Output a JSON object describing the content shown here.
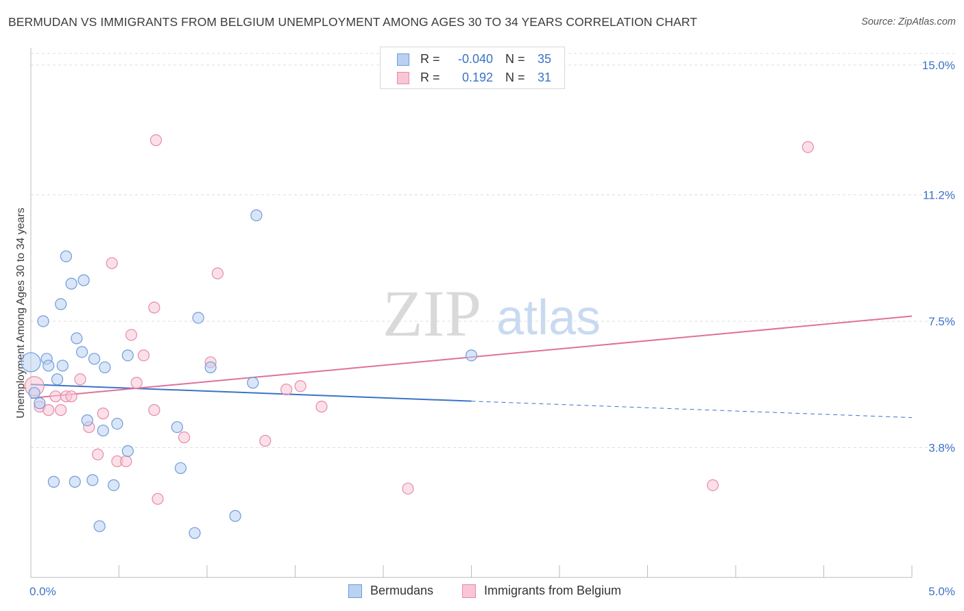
{
  "header": {
    "title": "BERMUDAN VS IMMIGRANTS FROM BELGIUM UNEMPLOYMENT AMONG AGES 30 TO 34 YEARS CORRELATION CHART",
    "source": "Source: ZipAtlas.com"
  },
  "watermark": {
    "zip": "ZIP",
    "atlas": "atlas"
  },
  "stats": {
    "r_label": "R =",
    "n_label": "N =",
    "rows": [
      {
        "r": "-0.040",
        "n": "35"
      },
      {
        "r": "0.192",
        "n": "31"
      }
    ]
  },
  "legend": {
    "items": [
      "Bermudans",
      "Immigrants from Belgium"
    ]
  },
  "colors": {
    "blue_fill": "#b9d1f2",
    "blue_stroke": "#6f9ad8",
    "blue_line": "#3a72c8",
    "pink_fill": "#f8c6d6",
    "pink_stroke": "#e68aaa",
    "pink_line": "#e0709a",
    "tick_label": "#3b72c8",
    "grid": "#dddddd"
  },
  "chart_data": {
    "type": "scatter",
    "title": "BERMUDAN VS IMMIGRANTS FROM BELGIUM UNEMPLOYMENT AMONG AGES 30 TO 34 YEARS CORRELATION CHART",
    "xlabel": "",
    "ylabel": "Unemployment Among Ages 30 to 34 years",
    "xlim": [
      0,
      5.0
    ],
    "ylim": [
      0,
      15.5
    ],
    "x_tick_labels": [
      "0.0%",
      "5.0%"
    ],
    "y_ticks": [
      3.8,
      7.5,
      11.2,
      15.0
    ],
    "y_tick_labels": [
      "3.8%",
      "7.5%",
      "11.2%",
      "15.0%"
    ],
    "series": [
      {
        "name": "Bermudans",
        "r": -0.04,
        "n": 35,
        "points": [
          [
            0.0,
            6.3
          ],
          [
            0.05,
            5.1
          ],
          [
            0.07,
            7.5
          ],
          [
            0.09,
            6.4
          ],
          [
            0.1,
            6.2
          ],
          [
            0.13,
            2.8
          ],
          [
            0.15,
            5.8
          ],
          [
            0.17,
            8.0
          ],
          [
            0.18,
            6.2
          ],
          [
            0.2,
            9.4
          ],
          [
            0.23,
            8.6
          ],
          [
            0.25,
            2.8
          ],
          [
            0.26,
            7.0
          ],
          [
            0.29,
            6.6
          ],
          [
            0.3,
            8.7
          ],
          [
            0.32,
            4.6
          ],
          [
            0.35,
            2.85
          ],
          [
            0.36,
            6.4
          ],
          [
            0.39,
            1.5
          ],
          [
            0.41,
            4.3
          ],
          [
            0.42,
            6.15
          ],
          [
            0.47,
            2.7
          ],
          [
            0.49,
            4.5
          ],
          [
            0.55,
            3.7
          ],
          [
            0.55,
            6.5
          ],
          [
            0.83,
            4.4
          ],
          [
            0.85,
            3.2
          ],
          [
            0.93,
            1.3
          ],
          [
            0.95,
            7.6
          ],
          [
            1.02,
            6.15
          ],
          [
            1.16,
            1.8
          ],
          [
            1.26,
            5.7
          ],
          [
            1.28,
            10.6
          ],
          [
            2.5,
            6.5
          ],
          [
            0.02,
            5.4
          ]
        ],
        "trend": {
          "x": [
            0,
            2.5
          ],
          "y": [
            5.65,
            5.16
          ],
          "dashed_to": [
            5.0,
            4.68
          ]
        }
      },
      {
        "name": "Immigrants from Belgium",
        "r": 0.192,
        "n": 31,
        "points": [
          [
            0.02,
            5.6
          ],
          [
            0.05,
            5.0
          ],
          [
            0.1,
            4.9
          ],
          [
            0.14,
            5.3
          ],
          [
            0.17,
            4.9
          ],
          [
            0.2,
            5.3
          ],
          [
            0.23,
            5.3
          ],
          [
            0.28,
            5.8
          ],
          [
            0.33,
            4.4
          ],
          [
            0.38,
            3.6
          ],
          [
            0.41,
            4.8
          ],
          [
            0.46,
            9.2
          ],
          [
            0.49,
            3.4
          ],
          [
            0.54,
            3.4
          ],
          [
            0.57,
            7.1
          ],
          [
            0.6,
            5.7
          ],
          [
            0.64,
            6.5
          ],
          [
            0.7,
            4.9
          ],
          [
            0.7,
            7.9
          ],
          [
            0.71,
            12.8
          ],
          [
            0.72,
            2.3
          ],
          [
            0.87,
            4.1
          ],
          [
            1.02,
            6.3
          ],
          [
            1.06,
            8.9
          ],
          [
            1.33,
            4.0
          ],
          [
            1.45,
            5.5
          ],
          [
            1.53,
            5.6
          ],
          [
            1.65,
            5.0
          ],
          [
            2.14,
            2.6
          ],
          [
            3.87,
            2.7
          ],
          [
            4.41,
            12.6
          ]
        ],
        "trend": {
          "x": [
            0,
            5.0
          ],
          "y": [
            5.25,
            7.65
          ]
        }
      }
    ]
  }
}
